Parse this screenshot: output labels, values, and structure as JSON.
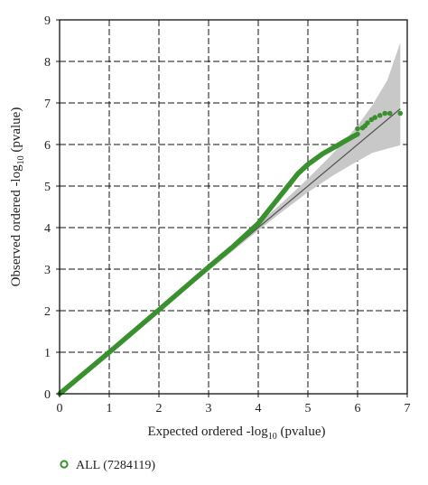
{
  "chart_data": {
    "type": "scatter",
    "xlabel_prefix": "Expected ordered -log",
    "xlabel_sub": "10",
    "xlabel_suffix": " (pvalue)",
    "ylabel_prefix": "Observed ordered -log",
    "ylabel_sub": "10",
    "ylabel_suffix": "  (pvalue)",
    "xlim": [
      0,
      7
    ],
    "ylim": [
      0,
      9
    ],
    "xticks": [
      "0",
      "1",
      "2",
      "3",
      "4",
      "5",
      "6",
      "7"
    ],
    "yticks": [
      "0",
      "1",
      "2",
      "3",
      "4",
      "5",
      "6",
      "7",
      "8",
      "9"
    ],
    "grid": true,
    "grid_style": "dashed",
    "legend_position": "bottom-left",
    "colors": {
      "points": "#3a8f2e",
      "expected_line": "#555555",
      "confidence_band": "#c8c8c8"
    },
    "reference_line": {
      "x": [
        0,
        6.86
      ],
      "y": [
        0,
        6.86
      ]
    },
    "confidence_band": {
      "x": [
        0,
        3.0,
        3.5,
        4.0,
        4.5,
        5.0,
        5.5,
        6.0,
        6.3,
        6.6,
        6.86
      ],
      "lower": [
        0,
        2.96,
        3.45,
        3.93,
        4.4,
        4.85,
        5.25,
        5.6,
        5.8,
        5.9,
        5.98
      ],
      "upper": [
        0,
        3.04,
        3.56,
        4.09,
        4.62,
        5.18,
        5.78,
        6.45,
        6.95,
        7.55,
        8.45
      ]
    },
    "series": [
      {
        "name": "ALL (7284119)",
        "curve": {
          "x": [
            0,
            1.0,
            2.0,
            3.0,
            3.5,
            4.0,
            4.3,
            4.6,
            4.8,
            5.0,
            5.3,
            5.6,
            5.8,
            6.0
          ],
          "y": [
            0,
            1.0,
            2.02,
            3.05,
            3.55,
            4.1,
            4.55,
            5.0,
            5.3,
            5.52,
            5.78,
            5.98,
            6.12,
            6.25
          ]
        },
        "top_points": {
          "x": [
            6.0,
            6.1,
            6.15,
            6.2,
            6.28,
            6.35,
            6.45,
            6.55,
            6.65,
            6.86
          ],
          "y": [
            6.38,
            6.4,
            6.45,
            6.52,
            6.6,
            6.65,
            6.7,
            6.75,
            6.75,
            6.75
          ]
        }
      }
    ]
  }
}
